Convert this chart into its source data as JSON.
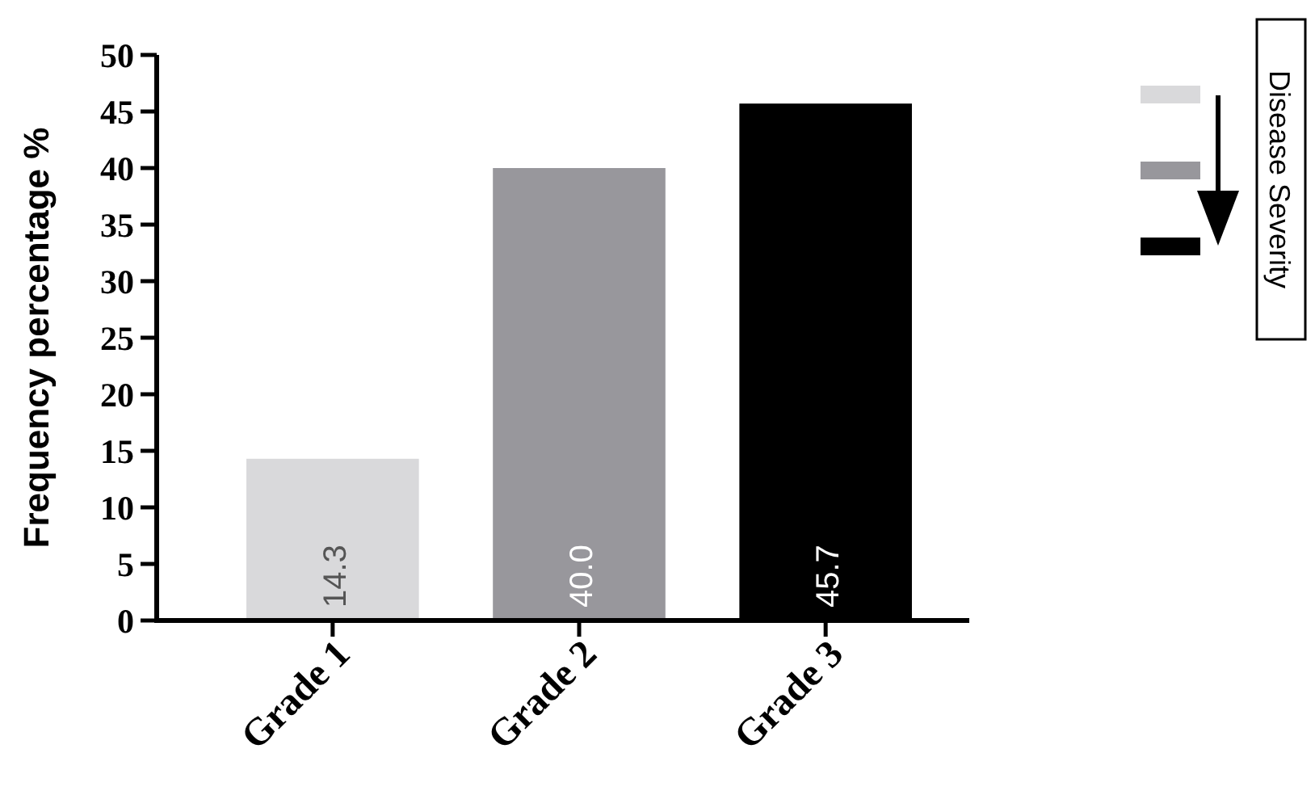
{
  "chart_data": {
    "type": "bar",
    "ylabel": "Frequency percentage %",
    "categories": [
      "Grade 1",
      "Grade 2",
      "Grade 3"
    ],
    "values": [
      14.3,
      40.0,
      45.7
    ],
    "colors": [
      "#d9d9db",
      "#98979c",
      "#000000"
    ],
    "value_labels": [
      "14.3",
      "40.0",
      "45.7"
    ],
    "ylim": [
      0,
      50
    ],
    "yticks": [
      0,
      5,
      10,
      15,
      20,
      25,
      30,
      35,
      40,
      45,
      50
    ],
    "grid": false,
    "annotations": [
      "Disease Severity"
    ]
  }
}
